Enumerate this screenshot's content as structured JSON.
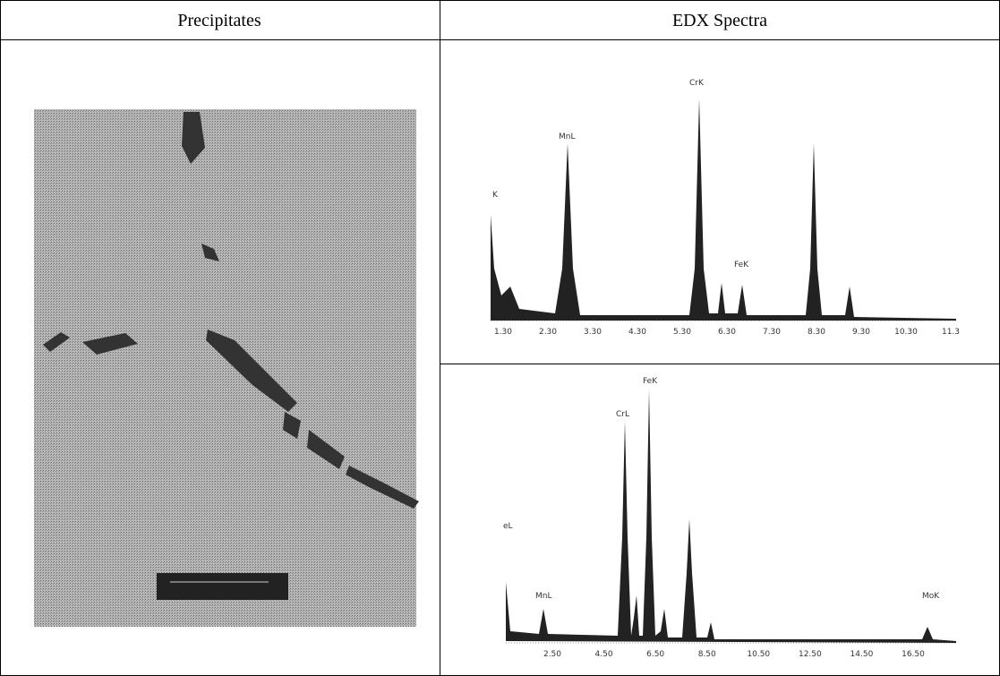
{
  "table": {
    "headers": [
      "Precipitates",
      "EDX Spectra"
    ]
  },
  "spectrum_1": {
    "peak_labels": [
      "K",
      "MnL",
      "CrK",
      "FeK"
    ],
    "ticks": [
      "1.30",
      "2.30",
      "3.30",
      "4.30",
      "5.30",
      "6.30",
      "7.30",
      "8.30",
      "9.30",
      "10.30",
      "11.3"
    ]
  },
  "spectrum_2": {
    "peak_labels": [
      "eL",
      "MnL",
      "CrL",
      "FeK",
      "MoK"
    ],
    "ticks": [
      "2.50",
      "4.50",
      "6.50",
      "8.50",
      "10.50",
      "12.50",
      "14.50",
      "16.50"
    ]
  }
}
